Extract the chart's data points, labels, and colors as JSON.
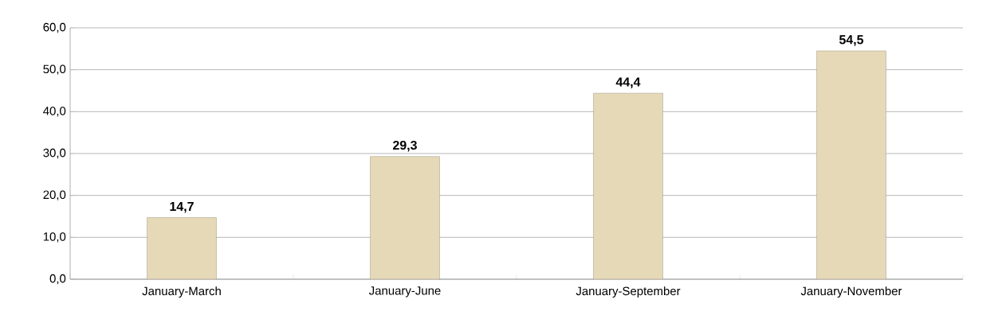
{
  "chart_data": {
    "type": "bar",
    "categories": [
      "January-March",
      "January-June",
      "January-September",
      "January-November"
    ],
    "values": [
      14.7,
      29.3,
      44.4,
      54.5
    ],
    "value_labels": [
      "14,7",
      "29,3",
      "44,4",
      "54,5"
    ],
    "color": "#e6d9b8",
    "ylim": [
      0,
      60
    ],
    "yticks": [
      {
        "value": 0,
        "label": "0,0"
      },
      {
        "value": 10,
        "label": "10,0"
      },
      {
        "value": 20,
        "label": "20,0"
      },
      {
        "value": 30,
        "label": "30,0"
      },
      {
        "value": 40,
        "label": "40,0"
      },
      {
        "value": 50,
        "label": "50,0"
      },
      {
        "value": 60,
        "label": "60,0"
      }
    ],
    "grid": "y"
  }
}
